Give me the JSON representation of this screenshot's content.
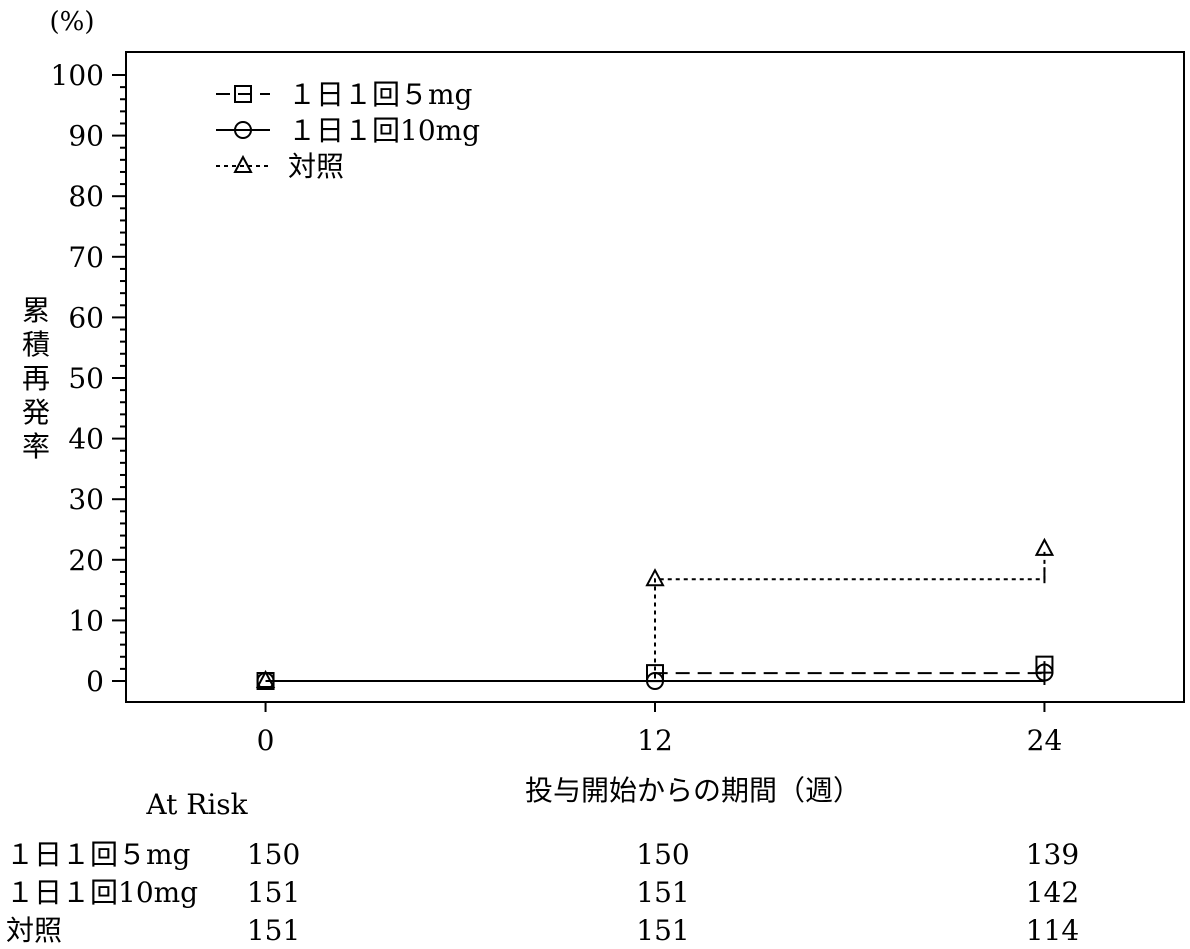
{
  "chart_data": {
    "type": "line",
    "step": true,
    "y_unit": "(%)",
    "ylabel": "累積再発率",
    "xlabel": "投与開始からの期間（週）",
    "ylim": [
      0,
      100
    ],
    "yticks": [
      0,
      10,
      20,
      30,
      40,
      50,
      60,
      70,
      80,
      90,
      100
    ],
    "xlim": [
      -4.3,
      28.3
    ],
    "xticks": [
      0,
      12,
      24
    ],
    "grid": false,
    "legend_position": "top-left",
    "series": [
      {
        "name": "１日１回５mg",
        "marker": "square",
        "dash": "long-dash",
        "x": [
          0,
          12,
          24
        ],
        "y": [
          0,
          1.3,
          2.7
        ],
        "censor": [
          {
            "x": 24,
            "y": 1.3
          }
        ]
      },
      {
        "name": "１日１回10mg",
        "marker": "circle",
        "dash": "solid",
        "x": [
          0,
          12,
          24
        ],
        "y": [
          0,
          0,
          1.4
        ],
        "censor": [
          {
            "x": 24,
            "y": 0
          }
        ]
      },
      {
        "name": "対照",
        "marker": "triangle",
        "dash": "short-dash",
        "x": [
          0,
          12,
          24
        ],
        "y": [
          0,
          16.8,
          21.8
        ],
        "censor": [
          {
            "x": 24,
            "y": 16.8
          }
        ]
      }
    ],
    "at_risk": {
      "title": "At Risk",
      "rows": [
        {
          "label": "１日１回５mg",
          "values": [
            150,
            150,
            139
          ]
        },
        {
          "label": "１日１回10mg",
          "values": [
            151,
            151,
            142
          ]
        },
        {
          "label": "対照",
          "values": [
            151,
            151,
            114
          ]
        }
      ]
    }
  }
}
